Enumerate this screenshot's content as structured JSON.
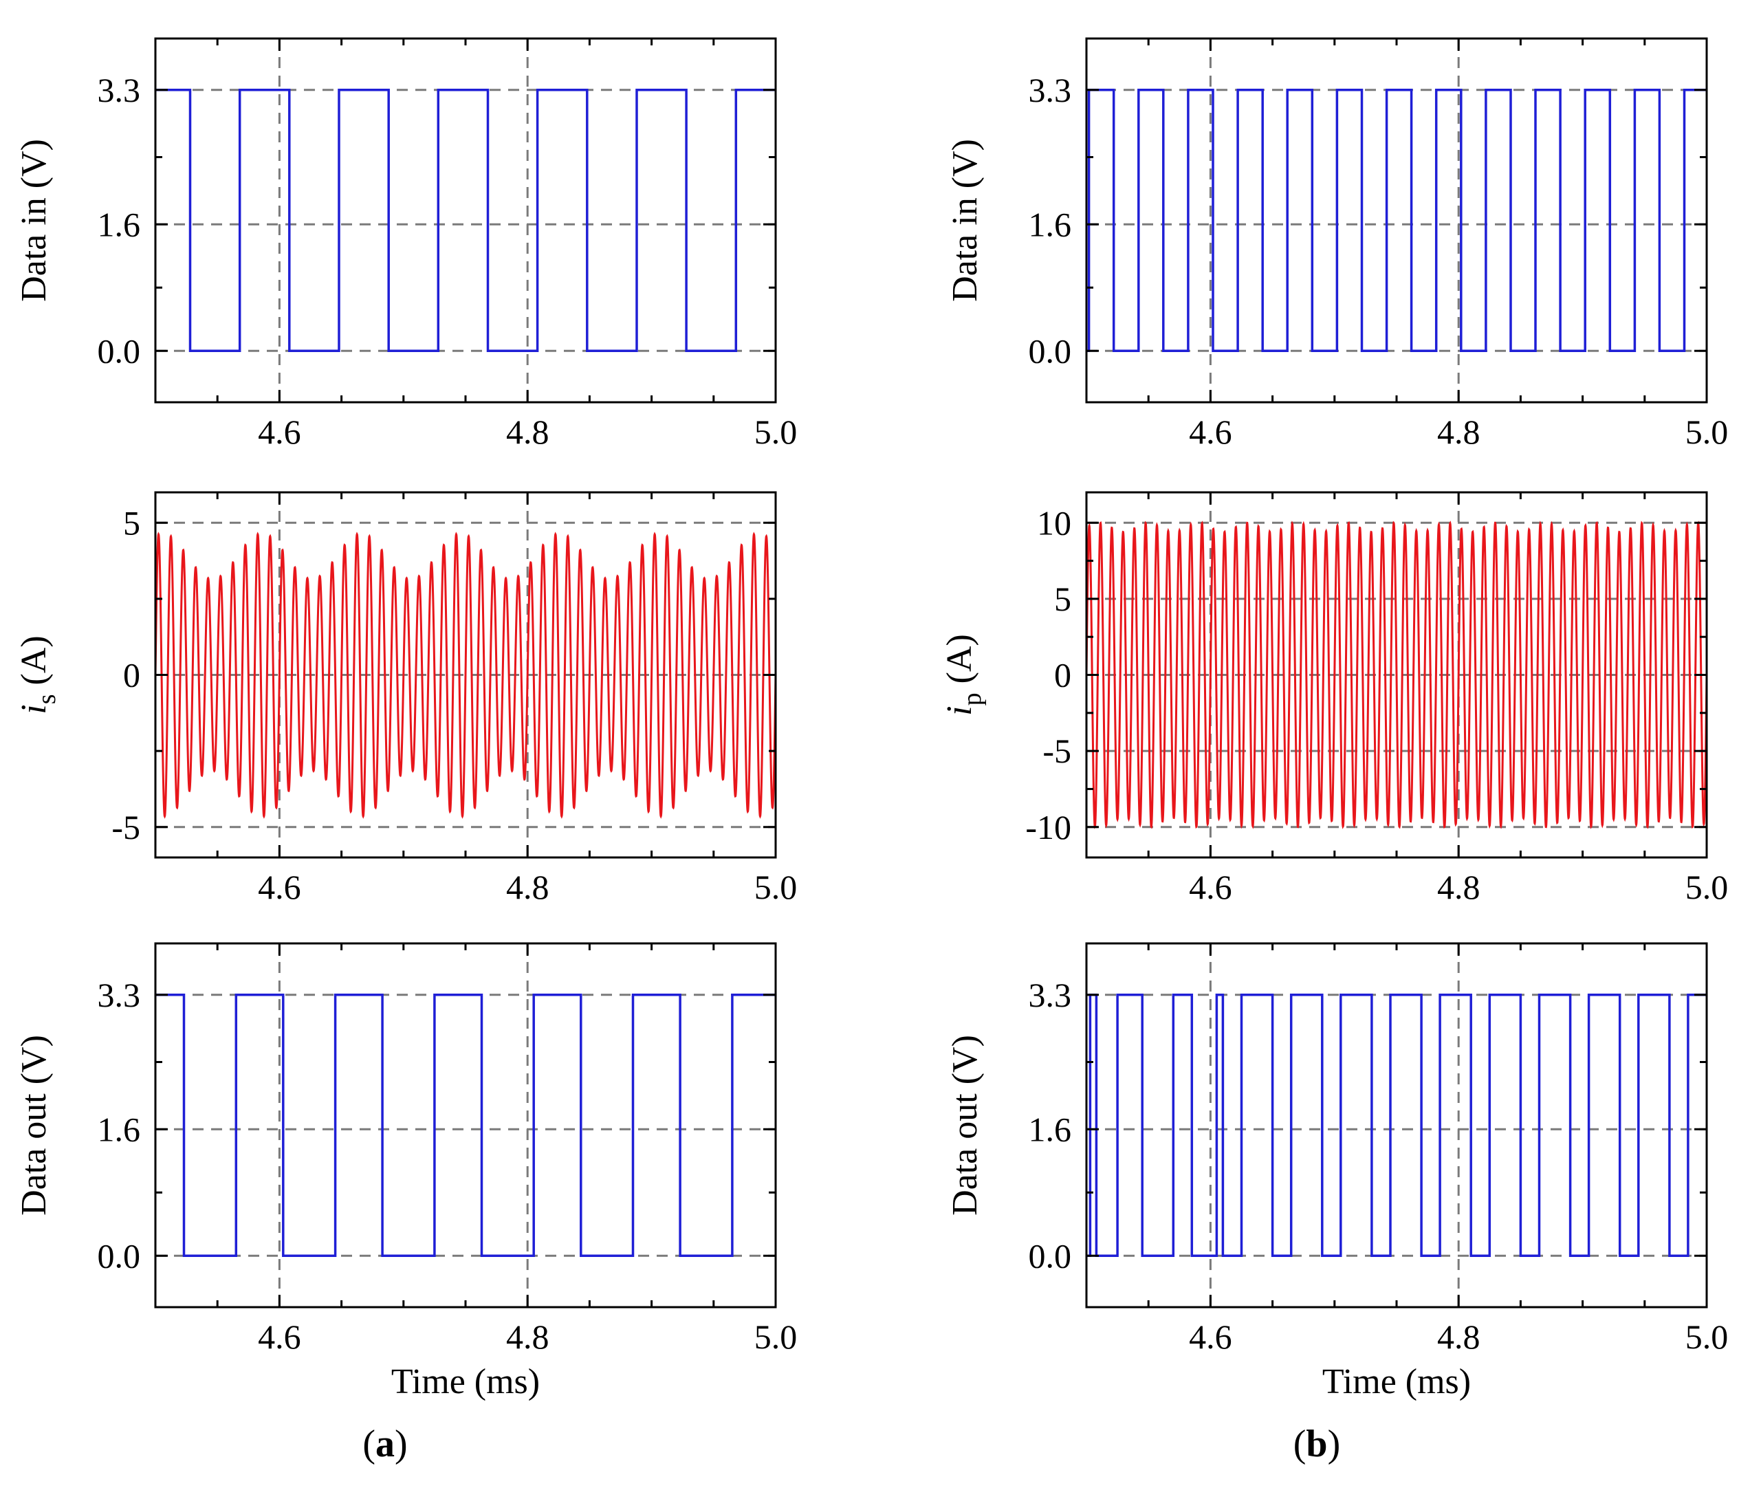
{
  "colors": {
    "digital": "#1f1fd6",
    "current": "#e8161b",
    "grid": "#7a7a7a",
    "axis": "#000000"
  },
  "panel_labels": [
    {
      "open": "(",
      "letter": "a",
      "close": ")"
    },
    {
      "open": "(",
      "letter": "b",
      "close": ")"
    }
  ],
  "chart_data": [
    {
      "id": "a-in",
      "column": 0,
      "row": 0,
      "type": "line",
      "kind": "digital",
      "ylabel": "Data in (V)",
      "xlabel": "",
      "xlim": [
        4.5,
        5.0
      ],
      "ylim": [
        -0.65,
        3.95
      ],
      "xticks": [
        4.6,
        4.8,
        5.0
      ],
      "xticklabels": [
        "4.6",
        "4.8",
        "5.0"
      ],
      "yticks": [
        0.0,
        1.6,
        3.3
      ],
      "yticklabels": [
        "0.0",
        "1.6",
        "3.3"
      ],
      "xgrid": [
        4.6,
        4.8
      ],
      "high": 3.3,
      "low": 0.0,
      "start": 4.5,
      "end": 5.0,
      "initial": "high",
      "transitions": [
        4.528,
        4.568,
        4.608,
        4.648,
        4.688,
        4.728,
        4.768,
        4.808,
        4.848,
        4.888,
        4.928,
        4.968
      ]
    },
    {
      "id": "a-is",
      "column": 0,
      "row": 1,
      "type": "line",
      "kind": "analog",
      "ylabel": "i",
      "ylabel_sub": "s",
      "ylabel_unit": " (A)",
      "xlabel": "",
      "xlim": [
        4.5,
        5.0
      ],
      "ylim": [
        -6,
        6
      ],
      "xticks": [
        4.6,
        4.8,
        5.0
      ],
      "xticklabels": [
        "4.6",
        "4.8",
        "5.0"
      ],
      "yticks": [
        -5,
        0,
        5
      ],
      "yticklabels": [
        "-5",
        "0",
        "5"
      ],
      "xgrid": [
        4.6,
        4.8
      ],
      "ygrid": [
        -5,
        0,
        5
      ],
      "waveform": {
        "amplitude_mean": 3.9,
        "amplitude_swing": 0.75,
        "carrier_cycles_per_ms": 100,
        "envelope_period_ms": 0.08,
        "envelope_phase": 1.1,
        "start": 4.5,
        "end": 5.0
      }
    },
    {
      "id": "a-out",
      "column": 0,
      "row": 2,
      "type": "line",
      "kind": "digital",
      "ylabel": "Data out (V)",
      "xlabel": "Time (ms)",
      "xlim": [
        4.5,
        5.0
      ],
      "ylim": [
        -0.65,
        3.95
      ],
      "xticks": [
        4.6,
        4.8,
        5.0
      ],
      "xticklabels": [
        "4.6",
        "4.8",
        "5.0"
      ],
      "yticks": [
        0.0,
        1.6,
        3.3
      ],
      "yticklabels": [
        "0.0",
        "1.6",
        "3.3"
      ],
      "xgrid": [
        4.6,
        4.8
      ],
      "high": 3.3,
      "low": 0.0,
      "start": 4.5,
      "end": 5.0,
      "initial": "high",
      "transitions": [
        4.523,
        4.565,
        4.603,
        4.645,
        4.683,
        4.725,
        4.763,
        4.805,
        4.843,
        4.885,
        4.923,
        4.965
      ]
    },
    {
      "id": "b-in",
      "column": 1,
      "row": 0,
      "type": "line",
      "kind": "digital",
      "ylabel": "Data in (V)",
      "xlabel": "",
      "xlim": [
        4.5,
        5.0
      ],
      "ylim": [
        -0.65,
        3.95
      ],
      "xticks": [
        4.6,
        4.8,
        5.0
      ],
      "xticklabels": [
        "4.6",
        "4.8",
        "5.0"
      ],
      "yticks": [
        0.0,
        1.6,
        3.3
      ],
      "yticklabels": [
        "0.0",
        "1.6",
        "3.3"
      ],
      "xgrid": [
        4.6,
        4.8
      ],
      "high": 3.3,
      "low": 0.0,
      "start": 4.5,
      "end": 5.0,
      "initial": "low",
      "transitions": [
        4.502,
        4.522,
        4.542,
        4.562,
        4.582,
        4.602,
        4.622,
        4.642,
        4.662,
        4.682,
        4.702,
        4.722,
        4.742,
        4.762,
        4.782,
        4.802,
        4.822,
        4.842,
        4.862,
        4.882,
        4.902,
        4.922,
        4.942,
        4.962,
        4.982
      ]
    },
    {
      "id": "b-ip",
      "column": 1,
      "row": 1,
      "type": "line",
      "kind": "analog",
      "ylabel": "i",
      "ylabel_sub": "p",
      "ylabel_unit": " (A)",
      "xlabel": "",
      "xlim": [
        4.5,
        5.0
      ],
      "ylim": [
        -12,
        12
      ],
      "xticks": [
        4.6,
        4.8,
        5.0
      ],
      "xticklabels": [
        "4.6",
        "4.8",
        "5.0"
      ],
      "yticks": [
        -10,
        -5,
        0,
        5,
        10
      ],
      "yticklabels": [
        "-10",
        "-5",
        "0",
        "5",
        "10"
      ],
      "xgrid": [
        4.6,
        4.8
      ],
      "ygrid": [
        -10,
        -5,
        0,
        5,
        10
      ],
      "waveform": {
        "amplitude_mean": 9.7,
        "amplitude_swing": 0.3,
        "carrier_cycles_per_ms": 110,
        "envelope_period_ms": 0.04,
        "envelope_phase": 0.0,
        "start": 4.5,
        "end": 5.0
      }
    },
    {
      "id": "b-out",
      "column": 1,
      "row": 2,
      "type": "line",
      "kind": "digital",
      "ylabel": "Data out (V)",
      "xlabel": "Time (ms)",
      "xlim": [
        4.5,
        5.0
      ],
      "ylim": [
        -0.65,
        3.95
      ],
      "xticks": [
        4.6,
        4.8,
        5.0
      ],
      "xticklabels": [
        "4.6",
        "4.8",
        "5.0"
      ],
      "yticks": [
        0.0,
        1.6,
        3.3
      ],
      "yticklabels": [
        "0.0",
        "1.6",
        "3.3"
      ],
      "xgrid": [
        4.6,
        4.8
      ],
      "high": 3.3,
      "low": 0.0,
      "start": 4.5,
      "end": 5.0,
      "initial": "low",
      "transitions": [
        4.503,
        4.508,
        4.525,
        4.545,
        4.57,
        4.585,
        4.605,
        4.61,
        4.625,
        4.65,
        4.665,
        4.69,
        4.705,
        4.73,
        4.745,
        4.77,
        4.785,
        4.81,
        4.825,
        4.85,
        4.865,
        4.89,
        4.905,
        4.93,
        4.945,
        4.97,
        4.985
      ]
    }
  ]
}
